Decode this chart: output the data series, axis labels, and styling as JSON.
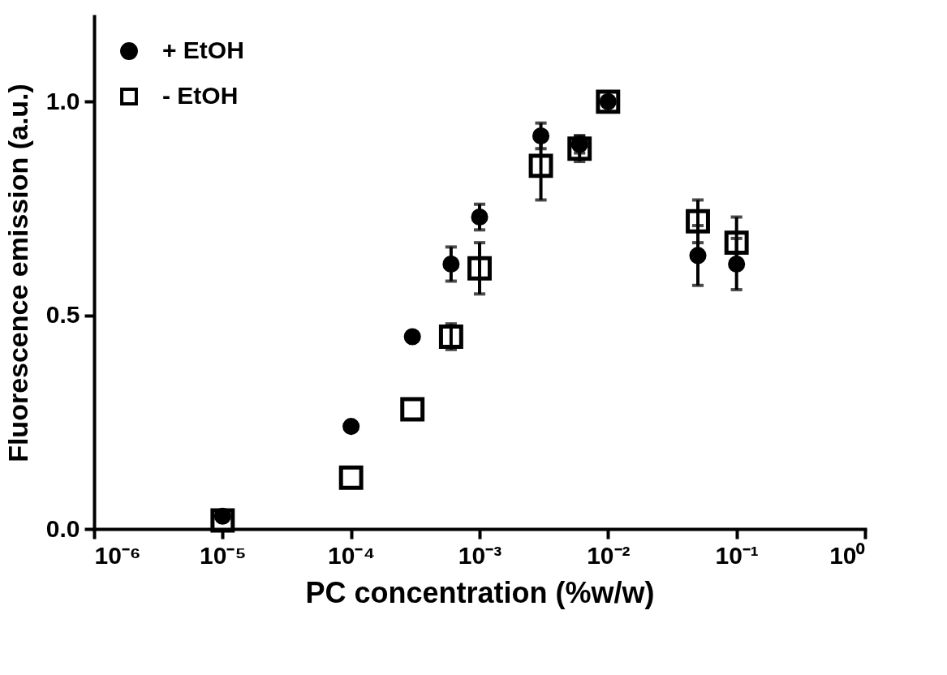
{
  "chart_data": {
    "type": "scatter",
    "xlabel": "PC concentration (%w/w)",
    "ylabel": "Fluorescence emission (a.u.)",
    "x": [
      1e-05,
      0.0001,
      0.0003,
      0.0006,
      0.001,
      0.003,
      0.006,
      0.01,
      0.05,
      0.1
    ],
    "series": [
      {
        "name": "+ EtOH",
        "color": "#000000",
        "marker": "circle",
        "values": [
          0.03,
          0.24,
          0.45,
          0.62,
          0.73,
          0.92,
          0.9,
          1.0,
          0.64,
          0.62
        ],
        "errors": [
          null,
          null,
          null,
          0.04,
          0.03,
          0.03,
          0.02,
          null,
          0.07,
          0.06
        ]
      },
      {
        "name": "- EtOH",
        "color": "#000000",
        "marker": "square",
        "values": [
          0.02,
          0.12,
          0.28,
          0.45,
          0.61,
          0.85,
          0.89,
          1.0,
          0.72,
          0.67
        ],
        "errors": [
          null,
          null,
          null,
          0.03,
          0.06,
          0.08,
          0.03,
          null,
          0.05,
          0.06
        ]
      }
    ],
    "log": "x",
    "xlim": [
      1e-06,
      1
    ],
    "xticks": [
      {
        "value": 1e-06,
        "label": "10⁻⁶"
      },
      {
        "value": 1e-05,
        "label": "10⁻⁵"
      },
      {
        "value": 0.0001,
        "label": "10⁻⁴"
      },
      {
        "value": 0.001,
        "label": "10⁻³"
      },
      {
        "value": 0.01,
        "label": "10⁻²"
      },
      {
        "value": 0.1,
        "label": "10⁻¹"
      },
      {
        "value": 1,
        "label": "10⁰"
      }
    ],
    "ylim": [
      0,
      1.2
    ],
    "yticks": [
      {
        "value": 0,
        "label": "0.0"
      },
      {
        "value": 0.5,
        "label": "0.5"
      },
      {
        "value": 1,
        "label": "1.0"
      }
    ],
    "grid": false,
    "legend": "top left"
  }
}
